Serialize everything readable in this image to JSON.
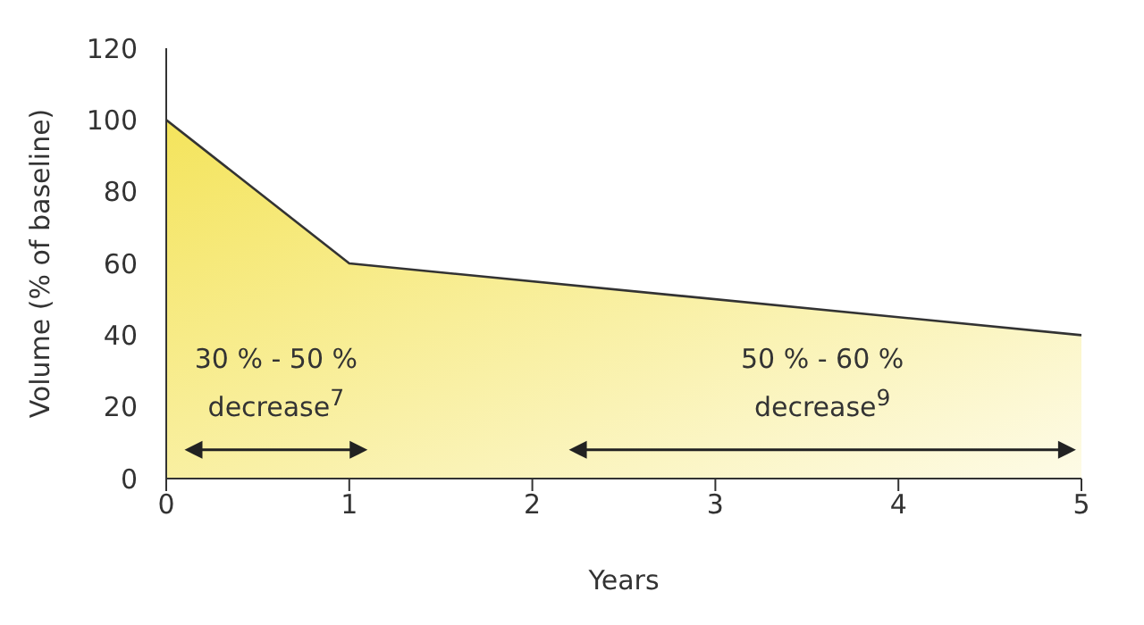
{
  "chart_data": {
    "type": "area",
    "xlabel": "Years",
    "ylabel": "Volume (% of baseline)",
    "x": [
      0,
      1,
      5
    ],
    "series": [
      {
        "color": "#f4e45c",
        "values": [
          100,
          60,
          40
        ]
      }
    ],
    "xlim": [
      0,
      5
    ],
    "xticks": [
      0,
      1,
      2,
      3,
      4,
      5
    ],
    "ylim": [
      0,
      120
    ],
    "yticks": [
      0,
      20,
      40,
      60,
      80,
      100,
      120
    ],
    "annotations": [
      "30 % - 50 % decrease$^{7}$",
      "50 % - 60 % decrease$^{9}$"
    ]
  }
}
